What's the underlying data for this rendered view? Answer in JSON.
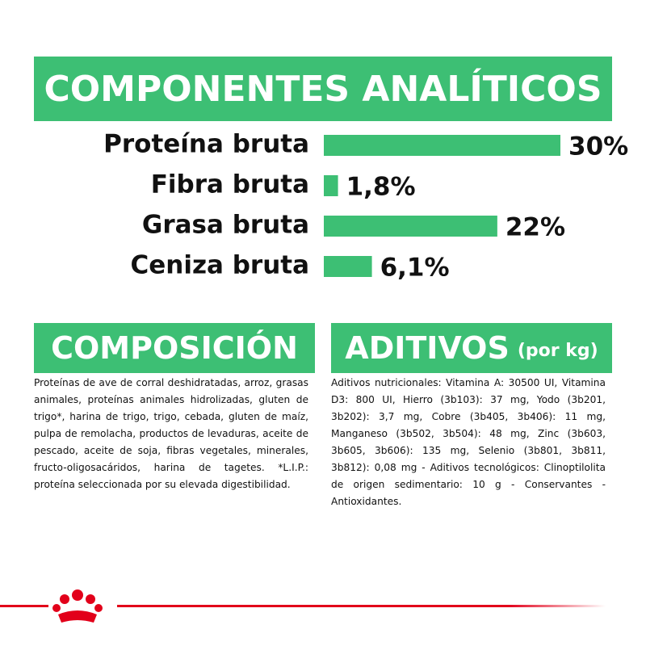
{
  "header": {
    "title": "COMPONENTES ANALÍTICOS"
  },
  "chart_data": {
    "type": "bar",
    "orientation": "horizontal",
    "categories": [
      "Proteína bruta",
      "Fibra bruta",
      "Grasa bruta",
      "Ceniza bruta"
    ],
    "values": [
      30,
      1.8,
      22,
      6.1
    ],
    "value_labels": [
      "30%",
      "1,8%",
      "22%",
      "6,1%"
    ],
    "color": "#3dbf74",
    "xlim": [
      0,
      30
    ]
  },
  "composicion": {
    "title": "COMPOSICIÓN",
    "text": "Proteínas de ave de corral deshidratadas, arroz, grasas animales, proteínas animales hidrolizadas, gluten de trigo*, harina de trigo, trigo, cebada, gluten de maíz, pulpa de remolacha, productos de levaduras, aceite de pescado, aceite de soja, fibras vegetales, minerales, fructo-oligosacáridos, harina de tagetes. *L.I.P.: proteína seleccionada por su elevada digestibilidad."
  },
  "aditivos": {
    "title": "ADITIVOS",
    "subtitle": "(por kg)",
    "text": "Aditivos nutricionales: Vitamina A: 30500 UI, Vitamina D3: 800 UI, Hierro (3b103): 37 mg, Yodo (3b201, 3b202): 3,7 mg, Cobre (3b405, 3b406): 11 mg, Manganeso (3b502, 3b504): 48 mg, Zinc (3b603, 3b605, 3b606): 135 mg, Selenio (3b801, 3b811, 3b812): 0,08 mg - Aditivos tecnológicos: Clinoptilolita de origen sedimentario: 10 g - Conservantes - Antioxidantes."
  }
}
